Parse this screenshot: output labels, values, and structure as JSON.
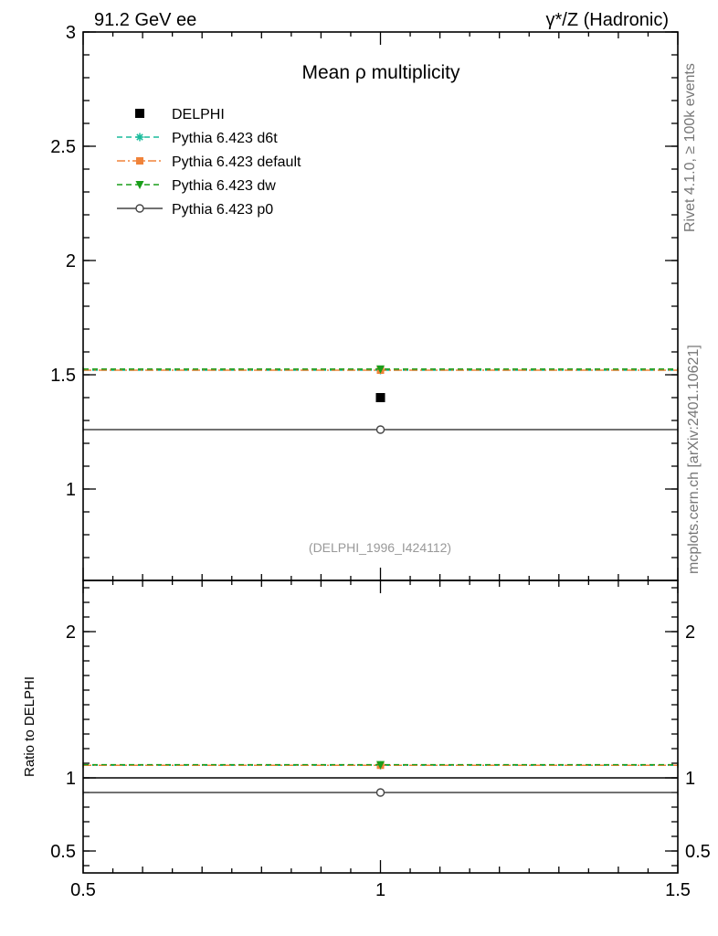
{
  "header": {
    "left": "91.2 GeV ee",
    "right": "γ*/Z (Hadronic)"
  },
  "side_text": {
    "rivet": "Rivet 4.1.0, ≥ 100k events",
    "mcplots": "mcplots.cern.ch [arXiv:2401.10621]"
  },
  "chart_data": [
    {
      "type": "scatter",
      "panel": "main",
      "title": "Mean ρ multiplicity",
      "xlim": [
        0.5,
        1.5
      ],
      "ylim": [
        0.6,
        3.0
      ],
      "yticks": [
        1,
        1.5,
        2,
        2.5,
        3
      ],
      "ytick_labels": [
        "1",
        "1.5",
        "2",
        "2.5",
        "3"
      ],
      "analysis_label": "(DELPHI_1996_I424112)",
      "legend_position": "top-left",
      "series": [
        {
          "name": "DELPHI",
          "x": [
            1
          ],
          "y": [
            1.4
          ],
          "marker": "square",
          "color": "#000000",
          "line": "none"
        },
        {
          "name": "Pythia 6.423 d6t",
          "x": [
            0.5,
            1,
            1.5
          ],
          "y": [
            1.52,
            1.52,
            1.52
          ],
          "marker": "star",
          "color": "#1abc9c",
          "line": "dashed"
        },
        {
          "name": "Pythia 6.423 default",
          "x": [
            0.5,
            1,
            1.5
          ],
          "y": [
            1.52,
            1.52,
            1.52
          ],
          "marker": "square",
          "color": "#f0833a",
          "line": "dashdot"
        },
        {
          "name": "Pythia 6.423 dw",
          "x": [
            0.5,
            1,
            1.5
          ],
          "y": [
            1.525,
            1.525,
            1.525
          ],
          "marker": "triangle-down",
          "color": "#1a9e1a",
          "line": "dashed"
        },
        {
          "name": "Pythia 6.423 p0",
          "x": [
            0.5,
            1,
            1.5
          ],
          "y": [
            1.26,
            1.26,
            1.26
          ],
          "marker": "circle",
          "color": "#444444",
          "line": "solid"
        }
      ]
    },
    {
      "type": "scatter",
      "panel": "ratio",
      "ylabel": "Ratio to DELPHI",
      "xlim": [
        0.5,
        1.5
      ],
      "ylim": [
        0.35,
        2.35
      ],
      "xticks": [
        0.5,
        1,
        1.5
      ],
      "xtick_labels": [
        "0.5",
        "1",
        "1.5"
      ],
      "yticks": [
        0.5,
        1,
        2
      ],
      "ytick_labels": [
        "0.5",
        "1",
        "2"
      ],
      "reference": 1.0,
      "series": [
        {
          "name": "Pythia 6.423 d6t",
          "y": 1.086,
          "marker": "star",
          "color": "#1abc9c",
          "line": "dashed"
        },
        {
          "name": "Pythia 6.423 default",
          "y": 1.086,
          "marker": "square",
          "color": "#f0833a",
          "line": "dashdot"
        },
        {
          "name": "Pythia 6.423 dw",
          "y": 1.09,
          "marker": "triangle-down",
          "color": "#1a9e1a",
          "line": "dashed"
        },
        {
          "name": "Pythia 6.423 p0",
          "y": 0.9,
          "marker": "circle",
          "color": "#444444",
          "line": "solid"
        }
      ]
    }
  ]
}
